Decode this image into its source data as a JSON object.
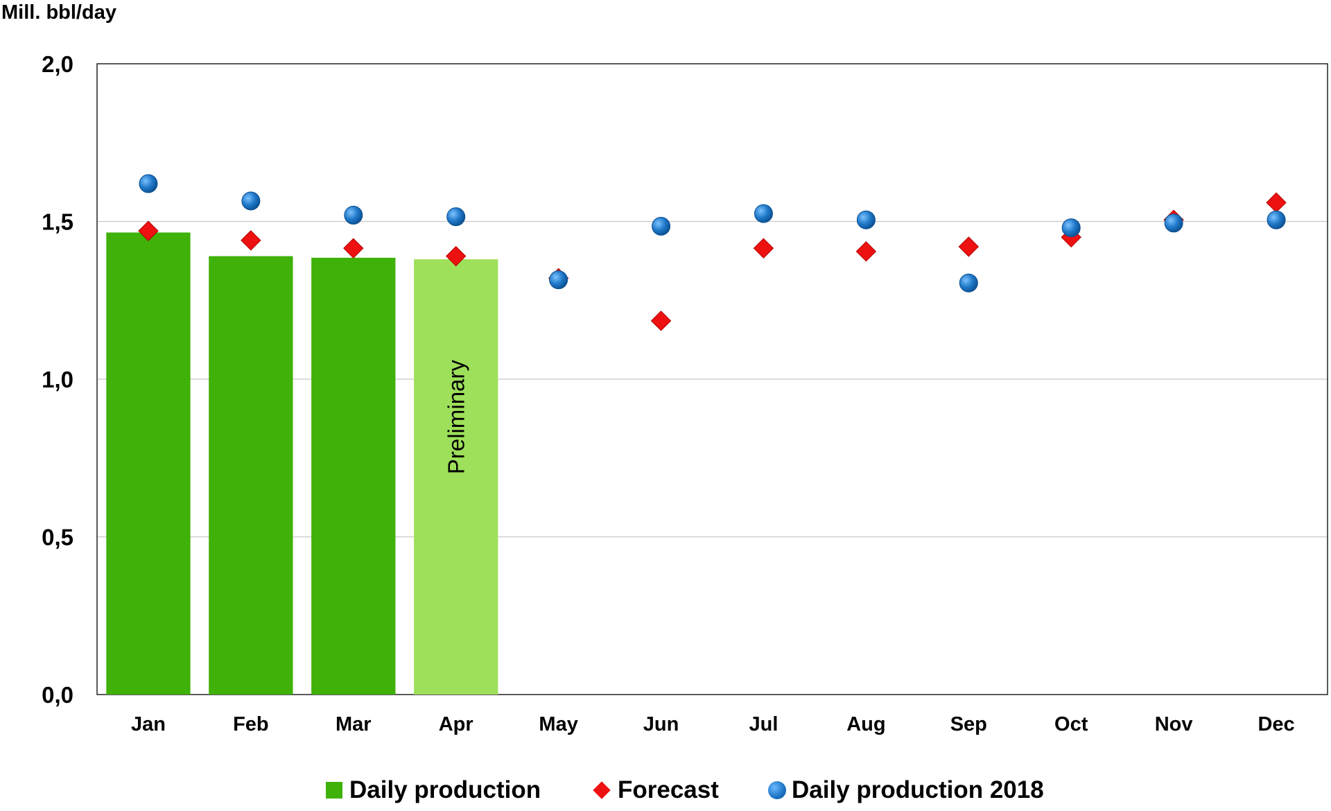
{
  "chart_data": {
    "type": "bar",
    "y_unit_label": "Mill. bbl/day",
    "categories": [
      "Jan",
      "Feb",
      "Mar",
      "Apr",
      "May",
      "Jun",
      "Jul",
      "Aug",
      "Sep",
      "Oct",
      "Nov",
      "Dec"
    ],
    "ylim": [
      0,
      2
    ],
    "yticks": [
      "0,0",
      "0,5",
      "1,0",
      "1,5",
      "2,0"
    ],
    "ytick_values": [
      0,
      0.5,
      1.0,
      1.5,
      2.0
    ],
    "grid": "horizontal",
    "legend_position": "bottom",
    "annotation": "Preliminary",
    "series": [
      {
        "name": "Daily production",
        "kind": "bar",
        "color": "#3fb109",
        "preliminary_color": "#9ee05a",
        "values": [
          1.465,
          1.39,
          1.385,
          1.38,
          null,
          null,
          null,
          null,
          null,
          null,
          null,
          null
        ],
        "preliminary": [
          false,
          false,
          false,
          true,
          false,
          false,
          false,
          false,
          false,
          false,
          false,
          false
        ]
      },
      {
        "name": "Forecast",
        "kind": "diamond",
        "color": "#ee1111",
        "values": [
          1.47,
          1.44,
          1.415,
          1.39,
          1.32,
          1.185,
          1.415,
          1.405,
          1.42,
          1.45,
          1.505,
          1.56
        ]
      },
      {
        "name": "Daily production 2018",
        "kind": "circle",
        "color": "#1f78c8",
        "values": [
          1.62,
          1.565,
          1.52,
          1.515,
          1.315,
          1.485,
          1.525,
          1.505,
          1.305,
          1.48,
          1.495,
          1.505
        ]
      }
    ]
  }
}
